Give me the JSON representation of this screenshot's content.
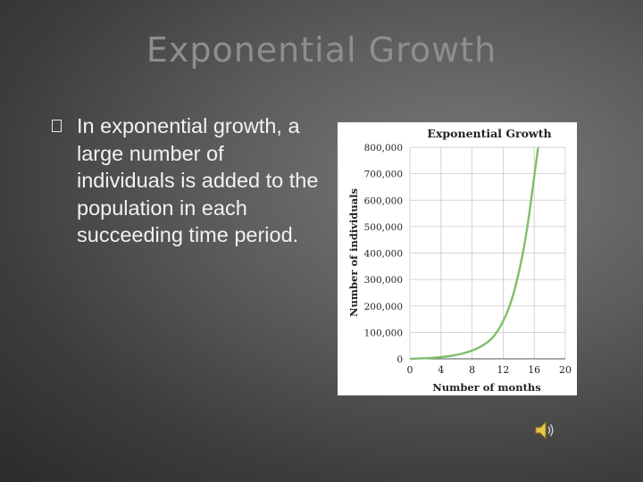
{
  "slide": {
    "title": "Exponential Growth",
    "bullet_text": "In exponential growth, a large number of individuals is added to the population in each succeeding time period."
  },
  "icons": {
    "bullet": "hollow-square-bullet",
    "audio": "speaker-icon"
  },
  "colors": {
    "curve": "#7fbf6a",
    "title": "#8e8e8e",
    "text": "#f2f2f2"
  },
  "chart_data": {
    "type": "line",
    "title": "Exponential Growth",
    "xlabel": "Number of months",
    "ylabel": "Number of individuals",
    "xlim": [
      0,
      20
    ],
    "ylim": [
      0,
      800000
    ],
    "x_ticks": [
      0,
      4,
      8,
      12,
      16,
      20
    ],
    "x_tick_labels": [
      "0",
      "4",
      "8",
      "12",
      "16",
      "20"
    ],
    "y_ticks": [
      0,
      100000,
      200000,
      300000,
      400000,
      500000,
      600000,
      700000,
      800000
    ],
    "y_tick_labels": [
      "0",
      "100,000",
      "200,000",
      "300,000",
      "400,000",
      "500,000",
      "600,000",
      "700,000",
      "800,000"
    ],
    "grid": true,
    "series": [
      {
        "x": [
          0,
          2,
          4,
          6,
          8,
          9,
          10,
          11,
          12,
          13,
          14,
          15,
          16,
          16.5
        ],
        "values": [
          0,
          2000,
          6000,
          14000,
          30000,
          44000,
          62000,
          90000,
          140000,
          210000,
          320000,
          470000,
          690000,
          800000
        ]
      }
    ]
  }
}
